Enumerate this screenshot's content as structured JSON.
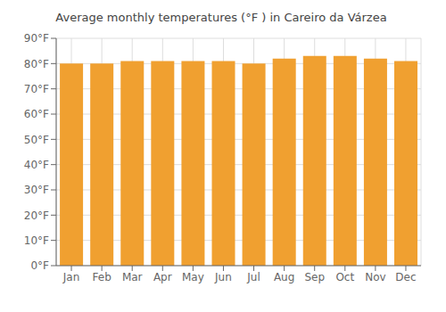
{
  "chart_data": {
    "type": "bar",
    "title": "Average monthly temperatures (°F ) in Careiro da Várzea",
    "categories": [
      "Jan",
      "Feb",
      "Mar",
      "Apr",
      "May",
      "Jun",
      "Jul",
      "Aug",
      "Sep",
      "Oct",
      "Nov",
      "Dec"
    ],
    "values": [
      80,
      80,
      81,
      81,
      81,
      81,
      80,
      82,
      83,
      83,
      82,
      81
    ],
    "color": "#F0A030",
    "ylim": [
      0,
      90
    ],
    "yticks": [
      {
        "value": 0,
        "label": "0°F"
      },
      {
        "value": 10,
        "label": "10°F"
      },
      {
        "value": 20,
        "label": "20°F"
      },
      {
        "value": 30,
        "label": "30°F"
      },
      {
        "value": 40,
        "label": "40°F"
      },
      {
        "value": 50,
        "label": "50°F"
      },
      {
        "value": 60,
        "label": "60°F"
      },
      {
        "value": 70,
        "label": "70°F"
      },
      {
        "value": 80,
        "label": "80°F"
      },
      {
        "value": 90,
        "label": "90°F"
      }
    ],
    "grid": true
  }
}
